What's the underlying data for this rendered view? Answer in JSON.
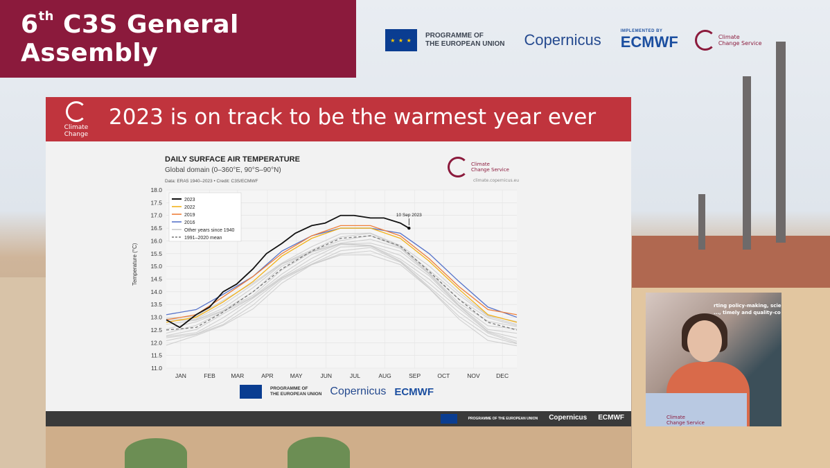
{
  "banner": {
    "ordinal": "6",
    "ordinal_sup": "th",
    "title_rest": " C3S General Assembly"
  },
  "top_logos": {
    "programme_line1": "PROGRAMME OF",
    "programme_line2": "THE EUROPEAN UNION",
    "copernicus": "Copernicus",
    "ecmwf_implemented": "IMPLEMENTED BY",
    "ecmwf": "ECMWF",
    "c3s_line1": "Climate",
    "c3s_line2": "Change Service"
  },
  "slide": {
    "logo_label": "Climate Change",
    "title": "2023 is on track to be the warmest year ever",
    "footer_programme": "PROGRAMME OF THE EUROPEAN UNION",
    "footer_copernicus": "Copernicus",
    "footer_ecmwf": "ECMWF"
  },
  "chart_logo": {
    "line1": "Climate",
    "line2": "Change Service",
    "url": "climate.copernicus.eu"
  },
  "bottom_logos": {
    "programme_line1": "PROGRAMME OF",
    "programme_line2": "THE EUROPEAN UNION",
    "copernicus": "Copernicus",
    "ecmwf": "ECMWF"
  },
  "speaker": {
    "podium_line1": "Climate",
    "podium_line2": "Change Service",
    "sign_text": "rting policy-making, scie ..., timely and quality-co"
  },
  "colors": {
    "banner": "#8b1a3c",
    "slide_header": "#c0343d",
    "y2023": "#111111",
    "y2022": "#f2b21b",
    "y2019": "#ef7f3a",
    "y2016": "#5773c9",
    "other": "#c9c9c9",
    "mean": "#777777"
  },
  "chart_data": {
    "type": "line",
    "title": "DAILY SURFACE AIR TEMPERATURE",
    "subtitle": "Global domain (0–360°E, 90°S–90°N)",
    "credit": "Data: ERA5 1940–2023 • Credit: C3S/ECMWF",
    "ylabel": "Temperature (°C)",
    "xlabel": "",
    "ylim": [
      11.0,
      18.0
    ],
    "yticks": [
      "11.0",
      "11.5",
      "12.0",
      "12.5",
      "13.0",
      "13.5",
      "14.0",
      "14.5",
      "15.0",
      "15.5",
      "16.0",
      "16.5",
      "17.0",
      "17.5",
      "18.0"
    ],
    "months": [
      "JAN",
      "FEB",
      "MAR",
      "APR",
      "MAY",
      "JUN",
      "JUL",
      "AUG",
      "SEP",
      "OCT",
      "NOV",
      "DEC"
    ],
    "annotation": {
      "text": "10 Sep 2023",
      "day": 253,
      "value": 16.5
    },
    "legend_position": "top-left",
    "grid": true,
    "series": [
      {
        "name": "2023",
        "color": "#111111",
        "days": [
          1,
          15,
          32,
          46,
          60,
          74,
          91,
          105,
          121,
          135,
          152,
          166,
          182,
          196,
          213,
          227,
          244,
          253
        ],
        "values": [
          12.9,
          12.6,
          13.1,
          13.4,
          14.0,
          14.3,
          14.9,
          15.5,
          15.9,
          16.3,
          16.6,
          16.7,
          17.0,
          17.0,
          16.9,
          16.9,
          16.7,
          16.5
        ]
      },
      {
        "name": "2022",
        "color": "#f2b21b",
        "days": [
          1,
          32,
          60,
          91,
          121,
          152,
          182,
          213,
          244,
          274,
          305,
          335,
          365
        ],
        "values": [
          12.8,
          13.0,
          13.6,
          14.4,
          15.4,
          16.1,
          16.5,
          16.5,
          16.1,
          15.2,
          14.1,
          13.1,
          12.8
        ]
      },
      {
        "name": "2019",
        "color": "#ef7f3a",
        "days": [
          1,
          32,
          60,
          91,
          121,
          152,
          182,
          213,
          244,
          274,
          305,
          335,
          365
        ],
        "values": [
          12.9,
          13.1,
          13.8,
          14.6,
          15.5,
          16.2,
          16.6,
          16.6,
          16.2,
          15.3,
          14.2,
          13.3,
          13.1
        ]
      },
      {
        "name": "2016",
        "color": "#5773c9",
        "days": [
          1,
          32,
          60,
          91,
          121,
          152,
          182,
          213,
          244,
          274,
          305,
          335,
          365
        ],
        "values": [
          13.1,
          13.3,
          13.9,
          14.6,
          15.6,
          16.2,
          16.5,
          16.5,
          16.3,
          15.5,
          14.4,
          13.4,
          13.0
        ]
      },
      {
        "name": "Other years since 1940",
        "color": "#c9c9c9",
        "days": [
          1,
          32,
          60,
          91,
          121,
          152,
          182,
          213,
          244,
          274,
          305,
          335,
          365
        ],
        "low": [
          11.9,
          12.2,
          12.7,
          13.4,
          14.3,
          15.0,
          15.5,
          15.5,
          15.0,
          14.1,
          13.0,
          12.1,
          11.8
        ],
        "high": [
          13.0,
          13.1,
          13.6,
          14.3,
          15.2,
          15.8,
          16.2,
          16.3,
          15.9,
          15.0,
          13.9,
          13.1,
          12.9
        ]
      },
      {
        "name": "1991–2020 mean",
        "color": "#777777",
        "dashed": true,
        "days": [
          1,
          32,
          60,
          91,
          121,
          152,
          182,
          213,
          244,
          274,
          305,
          335,
          365
        ],
        "values": [
          12.5,
          12.6,
          13.2,
          14.0,
          14.9,
          15.6,
          16.1,
          16.2,
          15.8,
          14.8,
          13.7,
          12.8,
          12.5
        ]
      }
    ]
  }
}
